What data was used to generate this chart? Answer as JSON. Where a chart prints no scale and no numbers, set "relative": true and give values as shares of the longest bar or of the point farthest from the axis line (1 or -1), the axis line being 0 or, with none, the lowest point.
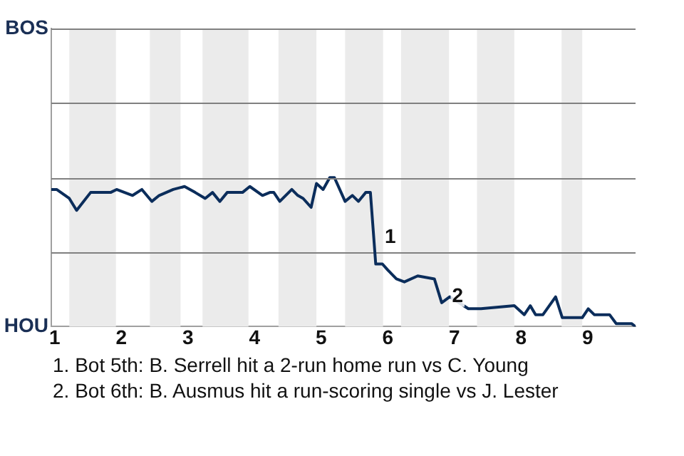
{
  "chart_data": {
    "type": "line",
    "x": [
      0.95,
      1.03,
      1.22,
      1.33,
      1.54,
      1.84,
      1.93,
      2.17,
      2.31,
      2.46,
      2.57,
      2.78,
      2.95,
      3.11,
      3.26,
      3.37,
      3.48,
      3.59,
      3.82,
      3.93,
      4.12,
      4.23,
      4.29,
      4.38,
      4.56,
      4.65,
      4.73,
      4.85,
      4.93,
      5.03,
      5.13,
      5.2,
      5.36,
      5.47,
      5.56,
      5.67,
      5.74,
      5.82,
      5.92,
      6,
      6.13,
      6.25,
      6.45,
      6.7,
      6.81,
      6.93,
      7.21,
      7.4,
      7.9,
      8.05,
      8.14,
      8.22,
      8.33,
      8.52,
      8.62,
      8.8,
      8.92,
      9.01,
      9.1,
      9.33,
      9.43,
      9.66,
      9.72
    ],
    "series": [
      {
        "color": "#0b2d5b",
        "values": [
          0.92,
          0.92,
          0.86,
          0.78,
          0.9,
          0.9,
          0.92,
          0.88,
          0.92,
          0.84,
          0.88,
          0.92,
          0.94,
          0.9,
          0.86,
          0.9,
          0.84,
          0.9,
          0.9,
          0.94,
          0.88,
          0.9,
          0.9,
          0.84,
          0.92,
          0.88,
          0.86,
          0.8,
          0.96,
          0.92,
          1,
          1,
          0.84,
          0.88,
          0.84,
          0.9,
          0.9,
          0.42,
          0.42,
          0.38,
          0.32,
          0.3,
          0.34,
          0.32,
          0.16,
          0.2,
          0.12,
          0.12,
          0.14,
          0.08,
          0.14,
          0.08,
          0.08,
          0.2,
          0.06,
          0.06,
          0.06,
          0.12,
          0.08,
          0.08,
          0.02,
          0.02,
          0
        ]
      }
    ],
    "relative": true,
    "xlim": [
      0.95,
      9.72
    ],
    "xticks": [
      1,
      2,
      3,
      4,
      5,
      6,
      7,
      8,
      9
    ],
    "bands": [
      {
        "axis": "x",
        "from": 1.22,
        "to": 1.92,
        "color": "#ebebeb"
      },
      {
        "axis": "x",
        "from": 2.43,
        "to": 2.89,
        "color": "#ebebeb"
      },
      {
        "axis": "x",
        "from": 3.22,
        "to": 3.91,
        "color": "#ebebeb"
      },
      {
        "axis": "x",
        "from": 4.36,
        "to": 4.93,
        "color": "#ebebeb"
      },
      {
        "axis": "x",
        "from": 5.36,
        "to": 5.93,
        "color": "#ebebeb"
      },
      {
        "axis": "x",
        "from": 6.2,
        "to": 6.92,
        "color": "#ebebeb"
      },
      {
        "axis": "x",
        "from": 7.34,
        "to": 7.9,
        "color": "#ebebeb"
      },
      {
        "axis": "x",
        "from": 8.61,
        "to": 8.92,
        "color": "#ebebeb"
      }
    ],
    "annotations": [
      "BOS",
      "HOU",
      {
        "text": "1",
        "x": 5.87,
        "y": 0.6
      },
      {
        "text": "2",
        "x": 6.88,
        "y": 0.2
      },
      "1. Bot 5th: B. Serrell hit a 2-run home run vs C. Young",
      "2. Bot 6th: B. Ausmus hit a run-scoring single vs J. Lester"
    ],
    "ref_lines": [
      {
        "axis": "y",
        "value": 0.5,
        "color": "#808080"
      }
    ],
    "legend": false,
    "marker": "none",
    "line_style": "solid"
  }
}
